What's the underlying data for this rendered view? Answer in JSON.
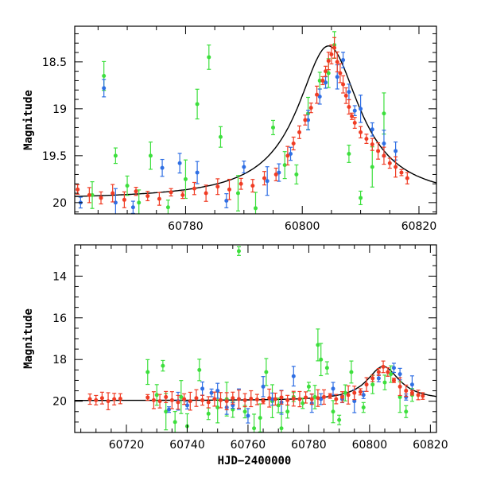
{
  "chart_data": [
    {
      "type": "scatter",
      "panel": "top",
      "xlabel": "",
      "ylabel": "Magnitude",
      "xlim": [
        60761,
        60823
      ],
      "ylim": [
        20.12,
        18.12
      ],
      "y_inverted": true,
      "x_ticks": [
        60780,
        60800,
        60820
      ],
      "y_ticks": [
        18.5,
        19,
        19.5,
        20
      ],
      "x_tick_labels": [
        "60780",
        "60800",
        "60820"
      ],
      "y_tick_labels": [
        "18.5",
        "19",
        "19.5",
        "20"
      ],
      "grid": false,
      "legend": "none",
      "model_curve": {
        "color": "#000000",
        "peak_x": 60804.5,
        "peak_mag": 18.33,
        "base_mag": 19.97
      },
      "series": [
        {
          "color": "#f03c24",
          "x": [
            60761.5,
            60763.5,
            60765.5,
            60767.5,
            60769.5,
            60771.5,
            60773.5,
            60775.5,
            60777.5,
            60779.5,
            60781.5,
            60783.5,
            60785.5,
            60787.5,
            60789.5,
            60791.5,
            60793.5,
            60795.5,
            60797.5,
            60798.5,
            60799.5,
            60800.5,
            60801.5,
            60802.5,
            60803.5,
            60804,
            60804.5,
            60805,
            60805.5,
            60806,
            60806.5,
            60807,
            60807.5,
            60808,
            60808.5,
            60809,
            60810,
            60811,
            60812,
            60813,
            60814,
            60815,
            60816,
            60817,
            60818
          ],
          "y": [
            19.86,
            19.92,
            19.95,
            19.9,
            19.97,
            19.88,
            19.93,
            19.96,
            19.89,
            19.92,
            19.85,
            19.9,
            19.83,
            19.86,
            19.8,
            19.82,
            19.74,
            19.7,
            19.5,
            19.37,
            19.25,
            19.12,
            18.99,
            18.85,
            18.7,
            18.6,
            18.49,
            18.42,
            18.35,
            18.5,
            18.62,
            18.74,
            18.86,
            18.98,
            19.08,
            19.15,
            19.25,
            19.32,
            19.38,
            19.45,
            19.5,
            19.58,
            19.62,
            19.68,
            19.74
          ]
        },
        {
          "color": "#2f6fe4",
          "x": [
            60762,
            60766,
            60768,
            60771,
            60776,
            60779,
            60782,
            60787,
            60790,
            60794,
            60796,
            60798,
            60801,
            60803,
            60804,
            60806,
            60807,
            60808,
            60809,
            60810,
            60812,
            60814,
            60816
          ],
          "y": [
            20.0,
            18.78,
            20.0,
            20.05,
            19.63,
            19.58,
            19.68,
            19.98,
            19.62,
            19.77,
            19.68,
            19.48,
            19.12,
            18.87,
            18.72,
            18.66,
            18.48,
            18.82,
            19.02,
            19.0,
            19.22,
            19.37,
            19.45
          ]
        },
        {
          "color": "#3ddf3d",
          "x": [
            60764,
            60766,
            60768,
            60770,
            60772,
            60774,
            60777,
            60780,
            60782,
            60784,
            60786,
            60789,
            60792,
            60795,
            60797,
            60799,
            60801,
            60803,
            60804.5,
            60805.5,
            60808,
            60810,
            60812,
            60814
          ],
          "y": [
            19.92,
            18.65,
            19.5,
            19.82,
            20.0,
            19.5,
            20.05,
            19.75,
            18.95,
            18.45,
            19.3,
            19.9,
            20.06,
            19.2,
            19.6,
            19.7,
            19.05,
            18.7,
            18.62,
            18.32,
            19.48,
            19.95,
            19.62,
            19.05
          ]
        }
      ]
    },
    {
      "type": "scatter",
      "panel": "bottom",
      "xlabel": "HJD−2400000",
      "ylabel": "Magnitude",
      "xlim": [
        60703,
        60822
      ],
      "ylim": [
        21.5,
        12.5
      ],
      "y_inverted": true,
      "x_ticks": [
        60720,
        60740,
        60760,
        60780,
        60800,
        60820
      ],
      "y_ticks": [
        14,
        16,
        18,
        20
      ],
      "x_tick_labels": [
        "60720",
        "60740",
        "60760",
        "60780",
        "60800",
        "60820"
      ],
      "y_tick_labels": [
        "14",
        "16",
        "18",
        "20"
      ],
      "grid": false,
      "legend": "none",
      "model_curve": {
        "color": "#000000",
        "peak_x": 60804.5,
        "peak_mag": 18.33,
        "base_mag": 19.97
      },
      "series": [
        {
          "color": "#f03c24",
          "x": [
            60708,
            60710,
            60712,
            60714,
            60716,
            60718,
            60727,
            60729,
            60731,
            60733,
            60735,
            60737,
            60739,
            60741,
            60743,
            60745,
            60747,
            60749,
            60751,
            60753,
            60755,
            60757,
            60759,
            60761,
            60763,
            60765,
            60767,
            60769,
            60771,
            60773,
            60775,
            60777,
            60779,
            60781,
            60783,
            60785,
            60787,
            60789,
            60791,
            60793,
            60795,
            60797,
            60799,
            60801,
            60803,
            60804.5,
            60806,
            60808,
            60810,
            60812,
            60814,
            60816,
            60817.5
          ],
          "y": [
            19.9,
            19.95,
            19.85,
            20.0,
            19.9,
            19.88,
            19.82,
            19.95,
            20.0,
            19.8,
            19.95,
            20.05,
            19.9,
            20.0,
            19.85,
            19.95,
            20.05,
            19.9,
            19.95,
            20.0,
            19.85,
            19.9,
            19.95,
            19.88,
            19.92,
            20.0,
            19.85,
            19.9,
            19.82,
            19.95,
            19.88,
            19.9,
            19.82,
            19.9,
            19.85,
            19.8,
            19.75,
            19.9,
            19.8,
            19.7,
            19.6,
            19.55,
            19.2,
            18.9,
            18.6,
            18.35,
            18.6,
            19.0,
            19.3,
            19.5,
            19.6,
            19.7,
            19.75
          ]
        },
        {
          "color": "#2f6fe4",
          "x": [
            60734,
            60737,
            60740,
            60745,
            60748,
            60750,
            60753,
            60755,
            60757,
            60760,
            60765,
            60768,
            60771,
            60775,
            60781,
            60784,
            60788,
            60791,
            60795,
            60798,
            60803,
            60808,
            60810,
            60812,
            60814
          ],
          "y": [
            20.4,
            20.0,
            20.2,
            19.4,
            19.6,
            19.5,
            20.3,
            20.2,
            19.9,
            20.7,
            19.3,
            19.9,
            20.05,
            18.8,
            20.1,
            19.9,
            19.4,
            19.9,
            20.0,
            19.7,
            18.9,
            18.4,
            18.7,
            19.8,
            19.2
          ]
        },
        {
          "color": "#3ddf3d",
          "x": [
            60727,
            60730,
            60732,
            60733,
            60736,
            60738,
            60740,
            60744,
            60747,
            60750,
            60753,
            60755,
            60757,
            60759,
            60762,
            60764,
            60766,
            60768,
            60770,
            60771,
            60773,
            60775,
            60778,
            60780,
            60782,
            60783,
            60784,
            60786,
            60788,
            60790,
            60792,
            60794,
            60798,
            60801,
            60805,
            60807,
            60810,
            60812,
            60814
          ],
          "y": [
            18.6,
            19.7,
            18.3,
            20.5,
            21.0,
            19.8,
            21.2,
            18.5,
            20.6,
            20.3,
            19.9,
            20.4,
            12.8,
            20.5,
            21.3,
            20.8,
            18.6,
            20.0,
            20.2,
            21.3,
            20.5,
            19.8,
            20.1,
            19.3,
            19.8,
            17.3,
            18.0,
            18.4,
            20.5,
            20.9,
            19.6,
            18.6,
            20.3,
            19.2,
            19.1,
            18.7,
            19.8,
            20.5,
            19.7
          ]
        }
      ]
    }
  ]
}
